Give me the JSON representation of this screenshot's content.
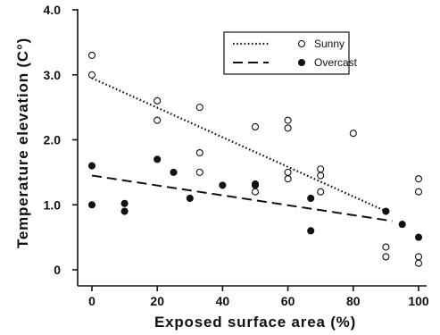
{
  "chart_data": {
    "type": "scatter",
    "xlabel": "Exposed surface area (%)",
    "ylabel": "Temperature elevation (C°)",
    "xlim": [
      0,
      100
    ],
    "ylim": [
      0,
      4.0
    ],
    "xticks": [
      "0",
      "20",
      "40",
      "60",
      "80",
      "100"
    ],
    "yticks": [
      "0",
      "1.0",
      "2.0",
      "3.0",
      "4.0"
    ],
    "grid": false,
    "legend": "top-right",
    "series": [
      {
        "name": "Sunny",
        "marker": "open-circle",
        "line_style": "dotted",
        "points": [
          [
            0,
            3.3
          ],
          [
            0,
            3.0
          ],
          [
            20,
            2.6
          ],
          [
            20,
            2.3
          ],
          [
            33,
            2.5
          ],
          [
            33,
            1.8
          ],
          [
            33,
            1.5
          ],
          [
            50,
            2.2
          ],
          [
            50,
            1.2
          ],
          [
            60,
            2.3
          ],
          [
            60,
            2.18
          ],
          [
            60,
            1.5
          ],
          [
            60,
            1.4
          ],
          [
            70,
            1.55
          ],
          [
            70,
            1.45
          ],
          [
            70,
            1.2
          ],
          [
            80,
            2.1
          ],
          [
            90,
            0.35
          ],
          [
            90,
            0.2
          ],
          [
            100,
            1.4
          ],
          [
            100,
            1.2
          ],
          [
            100,
            0.2
          ],
          [
            100,
            0.1
          ]
        ],
        "trend": [
          [
            0,
            2.95
          ],
          [
            90,
            0.9
          ]
        ]
      },
      {
        "name": "Overcast",
        "marker": "filled-circle",
        "line_style": "dashed",
        "points": [
          [
            0,
            1.6
          ],
          [
            0,
            1.0
          ],
          [
            10,
            1.02
          ],
          [
            10,
            0.9
          ],
          [
            20,
            1.7
          ],
          [
            25,
            1.5
          ],
          [
            30,
            1.1
          ],
          [
            40,
            1.3
          ],
          [
            50,
            1.32
          ],
          [
            50,
            1.3
          ],
          [
            67,
            1.1
          ],
          [
            67,
            0.6
          ],
          [
            90,
            0.9
          ],
          [
            95,
            0.7
          ],
          [
            100,
            0.5
          ]
        ],
        "trend": [
          [
            0,
            1.45
          ],
          [
            92,
            0.75
          ]
        ]
      }
    ]
  }
}
